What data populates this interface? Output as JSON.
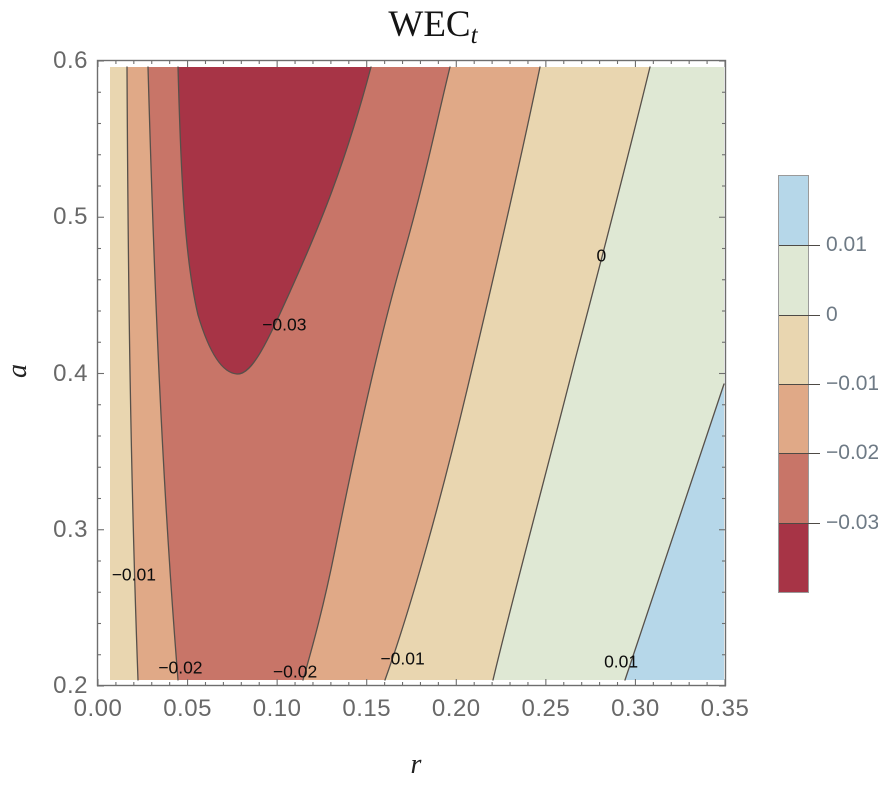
{
  "title": {
    "main": "WEC",
    "subscript": "t"
  },
  "axes": {
    "x_label": "r",
    "y_label": "a",
    "x_ticks": [
      {
        "label": "0.00",
        "r": 0.0
      },
      {
        "label": "0.05",
        "r": 0.05
      },
      {
        "label": "0.10",
        "r": 0.1
      },
      {
        "label": "0.15",
        "r": 0.15
      },
      {
        "label": "0.20",
        "r": 0.2
      },
      {
        "label": "0.25",
        "r": 0.25
      },
      {
        "label": "0.30",
        "r": 0.3
      },
      {
        "label": "0.35",
        "r": 0.35
      }
    ],
    "y_ticks": [
      {
        "label": "0.6",
        "a": 0.6
      },
      {
        "label": "0.5",
        "a": 0.5
      },
      {
        "label": "0.4",
        "a": 0.4
      },
      {
        "label": "0.3",
        "a": 0.3
      },
      {
        "label": "0.2",
        "a": 0.2
      }
    ]
  },
  "legend": {
    "segments_top_to_bottom": [
      {
        "band": "> 0.01",
        "color": "#b6d7e9"
      },
      {
        "band": "0 to 0.01",
        "color": "#dfe8d4"
      },
      {
        "band": "-0.01 to 0",
        "color": "#e9d6b0"
      },
      {
        "band": "-0.02 to -0.01",
        "color": "#e0a987"
      },
      {
        "band": "-0.03 to -0.02",
        "color": "#c87568"
      },
      {
        "band": "< -0.03",
        "color": "#a73446"
      }
    ],
    "boundary_labels": [
      "0.01",
      "0",
      "−0.01",
      "−0.02",
      "−0.03"
    ]
  },
  "contour_labels": [
    {
      "text": "−0.03",
      "r": 0.104,
      "a": 0.431
    },
    {
      "text": "0",
      "r": 0.281,
      "a": 0.475
    },
    {
      "text": "−0.01",
      "r": 0.02,
      "a": 0.271
    },
    {
      "text": "−0.02",
      "r": 0.046,
      "a": 0.2115
    },
    {
      "text": "−0.02",
      "r": 0.11,
      "a": 0.209
    },
    {
      "text": "−0.01",
      "r": 0.17,
      "a": 0.217
    },
    {
      "text": "0.01",
      "r": 0.292,
      "a": 0.2155
    }
  ],
  "chart_data": {
    "type": "contour_filled",
    "title": "WEC_t",
    "xlabel": "r",
    "ylabel": "a",
    "xlim": [
      0.0,
      0.35
    ],
    "ylim": [
      0.2,
      0.6
    ],
    "x_major_tick_step": 0.05,
    "x_minor_tick_step": 0.01,
    "y_major_tick_step": 0.1,
    "y_minor_tick_step": 0.02,
    "contour_levels": [
      -0.03,
      -0.02,
      -0.01,
      0,
      0.01
    ],
    "band_colors": {
      "below_-0.03": "#a73446",
      "-0.03_-0.02": "#c87568",
      "-0.02_-0.01": "#e0a987",
      "-0.01_0": "#e9d6b0",
      "0_0.01": "#dfe8d4",
      "above_0.01": "#b6d7e9"
    },
    "contour_lines": [
      {
        "level": -0.01,
        "branch": "left",
        "points_r_a": [
          [
            0.016,
            0.596
          ],
          [
            0.019,
            0.4
          ],
          [
            0.022,
            0.204
          ]
        ]
      },
      {
        "level": -0.02,
        "branch": "left",
        "points_r_a": [
          [
            0.028,
            0.596
          ],
          [
            0.037,
            0.4
          ],
          [
            0.045,
            0.204
          ]
        ]
      },
      {
        "level": -0.03,
        "branch": "U-shaped",
        "points_r_a": [
          [
            0.045,
            0.596
          ],
          [
            0.066,
            0.44
          ],
          [
            0.078,
            0.399
          ],
          [
            0.097,
            0.44
          ],
          [
            0.152,
            0.596
          ]
        ]
      },
      {
        "level": -0.02,
        "branch": "right",
        "points_r_a": [
          [
            0.197,
            0.596
          ],
          [
            0.155,
            0.4
          ],
          [
            0.115,
            0.204
          ]
        ]
      },
      {
        "level": -0.01,
        "branch": "right",
        "points_r_a": [
          [
            0.247,
            0.596
          ],
          [
            0.204,
            0.4
          ],
          [
            0.16,
            0.204
          ]
        ]
      },
      {
        "level": 0,
        "branch": "right",
        "points_r_a": [
          [
            0.308,
            0.596
          ],
          [
            0.265,
            0.4
          ],
          [
            0.221,
            0.204
          ]
        ]
      },
      {
        "level": 0.01,
        "branch": "bottom-right",
        "points_r_a": [
          [
            0.294,
            0.204
          ],
          [
            0.35,
            0.393
          ]
        ]
      }
    ],
    "minimum_region": {
      "description": "values below -0.03",
      "around_r": 0.08,
      "around_a": 0.5
    },
    "legend_position": "right",
    "grid": false
  }
}
